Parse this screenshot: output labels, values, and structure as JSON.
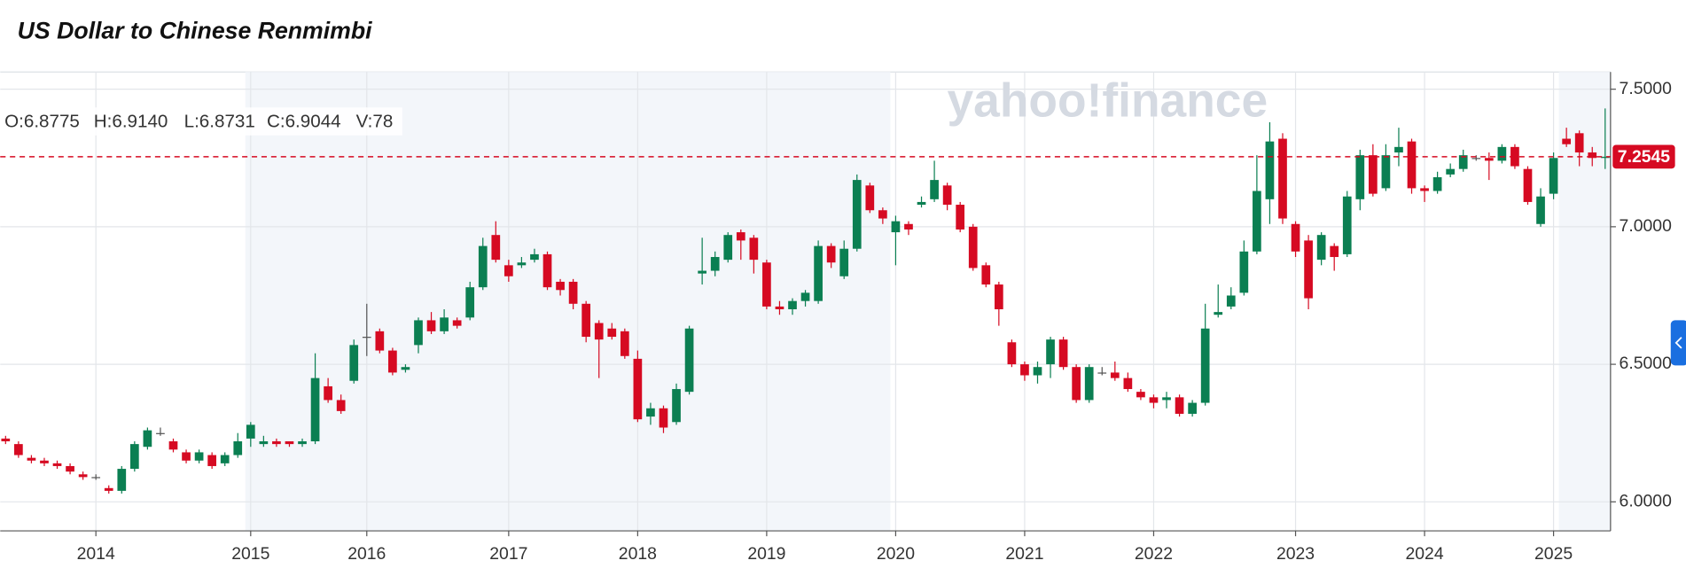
{
  "chart_data": {
    "type": "candlestick",
    "title": "US Dollar to Chinese Renmimbi",
    "watermark": "yahoo!finance",
    "readout": [
      "O:6.8775",
      "H:6.9140",
      "L:6.8731",
      "C:6.9044",
      "V:78"
    ],
    "last_price": 7.2545,
    "up_color": "#0b7f52",
    "down_color": "#d60a22",
    "last_color": "#d60a22",
    "ylim": [
      5.8945,
      7.5625
    ],
    "yticks": [
      {
        "value": 6.0,
        "label": "6.0000"
      },
      {
        "value": 6.5,
        "label": "6.5000"
      },
      {
        "value": 7.0,
        "label": "7.0000"
      },
      {
        "value": 7.5,
        "label": "7.5000"
      }
    ],
    "grid": true,
    "categories": [
      null,
      null,
      null,
      null,
      null,
      null,
      null,
      "2014",
      null,
      null,
      null,
      null,
      null,
      null,
      null,
      null,
      null,
      null,
      null,
      "2015",
      null,
      null,
      null,
      null,
      null,
      null,
      null,
      null,
      "2016",
      null,
      null,
      null,
      null,
      null,
      null,
      null,
      null,
      null,
      null,
      "2017",
      null,
      null,
      null,
      null,
      null,
      null,
      null,
      null,
      null,
      "2018",
      null,
      null,
      null,
      null,
      null,
      null,
      null,
      null,
      null,
      "2019",
      null,
      null,
      null,
      null,
      null,
      null,
      null,
      null,
      null,
      "2020",
      null,
      null,
      null,
      null,
      null,
      null,
      null,
      null,
      null,
      "2021",
      null,
      null,
      null,
      null,
      null,
      null,
      null,
      null,
      null,
      "2022",
      null,
      null,
      null,
      null,
      null,
      null,
      null,
      null,
      null,
      null,
      "2023",
      null,
      null,
      null,
      null,
      null,
      null,
      null,
      null,
      null,
      "2024",
      null,
      null,
      null,
      null,
      null,
      null,
      null,
      null,
      null,
      "2025",
      null,
      null,
      null,
      null
    ],
    "open": [
      6.23,
      6.21,
      6.16,
      6.15,
      6.14,
      6.13,
      6.1,
      6.09,
      6.05,
      6.04,
      6.12,
      6.2,
      6.25,
      6.22,
      6.18,
      6.15,
      6.17,
      6.14,
      6.17,
      6.23,
      6.21,
      6.22,
      6.22,
      6.21,
      6.22,
      6.42,
      6.37,
      6.44,
      6.6,
      6.62,
      6.55,
      6.48,
      6.57,
      6.66,
      6.62,
      6.66,
      6.67,
      6.78,
      6.97,
      6.86,
      6.86,
      6.88,
      6.9,
      6.8,
      6.8,
      6.72,
      6.65,
      6.63,
      6.62,
      6.52,
      6.31,
      6.34,
      6.29,
      6.4,
      6.83,
      6.84,
      6.88,
      6.98,
      6.96,
      6.87,
      6.71,
      6.7,
      6.73,
      6.73,
      6.93,
      6.82,
      6.92,
      7.15,
      7.06,
      6.98,
      7.01,
      7.08,
      7.1,
      7.15,
      7.08,
      7.0,
      6.86,
      6.79,
      6.58,
      6.5,
      6.46,
      6.5,
      6.59,
      6.49,
      6.37,
      6.47,
      6.47,
      6.45,
      6.4,
      6.38,
      6.37,
      6.38,
      6.32,
      6.36,
      6.68,
      6.71,
      6.76,
      6.91,
      7.1,
      7.32,
      7.01,
      6.95,
      6.88,
      6.93,
      6.9,
      7.1,
      7.26,
      7.14,
      7.27,
      7.31,
      7.14,
      7.13,
      7.19,
      7.21,
      7.25,
      7.25,
      7.24,
      7.29,
      7.21,
      7.01,
      7.12,
      7.32,
      7.34,
      7.27,
      7.25
    ],
    "high": [
      6.24,
      6.22,
      6.17,
      6.16,
      6.15,
      6.14,
      6.11,
      6.1,
      6.06,
      6.13,
      6.22,
      6.27,
      6.27,
      6.23,
      6.19,
      6.19,
      6.18,
      6.18,
      6.25,
      6.29,
      6.24,
      6.23,
      6.22,
      6.23,
      6.54,
      6.45,
      6.39,
      6.59,
      6.72,
      6.63,
      6.56,
      6.5,
      6.67,
      6.69,
      6.7,
      6.67,
      6.8,
      6.96,
      7.02,
      6.88,
      6.89,
      6.92,
      6.91,
      6.81,
      6.81,
      6.73,
      6.66,
      6.65,
      6.63,
      6.55,
      6.36,
      6.35,
      6.43,
      6.64,
      6.96,
      6.91,
      6.98,
      6.99,
      6.97,
      6.88,
      6.73,
      6.74,
      6.77,
      6.95,
      6.94,
      6.95,
      7.19,
      7.16,
      7.07,
      7.04,
      7.02,
      7.11,
      7.24,
      7.16,
      7.09,
      7.01,
      6.87,
      6.8,
      6.59,
      6.51,
      6.51,
      6.6,
      6.6,
      6.5,
      6.5,
      6.49,
      6.51,
      6.47,
      6.41,
      6.39,
      6.4,
      6.39,
      6.37,
      6.72,
      6.79,
      6.78,
      6.95,
      7.26,
      7.38,
      7.34,
      7.02,
      6.97,
      6.98,
      6.94,
      7.13,
      7.28,
      7.3,
      7.3,
      7.36,
      7.32,
      7.15,
      7.2,
      7.23,
      7.28,
      7.26,
      7.27,
      7.3,
      7.3,
      7.22,
      7.14,
      7.27,
      7.36,
      7.35,
      7.29,
      7.43
    ],
    "low": [
      6.21,
      6.16,
      6.14,
      6.13,
      6.12,
      6.1,
      6.08,
      6.08,
      6.03,
      6.03,
      6.11,
      6.19,
      6.24,
      6.18,
      6.14,
      6.14,
      6.12,
      6.13,
      6.16,
      6.2,
      6.2,
      6.2,
      6.2,
      6.2,
      6.21,
      6.36,
      6.32,
      6.43,
      6.53,
      6.54,
      6.46,
      6.47,
      6.54,
      6.61,
      6.61,
      6.63,
      6.66,
      6.77,
      6.87,
      6.8,
      6.85,
      6.87,
      6.77,
      6.75,
      6.7,
      6.58,
      6.45,
      6.59,
      6.52,
      6.29,
      6.28,
      6.25,
      6.28,
      6.39,
      6.79,
      6.82,
      6.87,
      6.88,
      6.83,
      6.7,
      6.68,
      6.68,
      6.71,
      6.72,
      6.85,
      6.81,
      6.91,
      7.05,
      7.01,
      6.86,
      6.97,
      7.07,
      7.09,
      7.06,
      6.98,
      6.84,
      6.78,
      6.64,
      6.49,
      6.44,
      6.43,
      6.45,
      6.48,
      6.36,
      6.36,
      6.46,
      6.44,
      6.4,
      6.37,
      6.34,
      6.34,
      6.31,
      6.31,
      6.35,
      6.67,
      6.7,
      6.75,
      6.9,
      7.01,
      7.01,
      6.89,
      6.7,
      6.86,
      6.84,
      6.89,
      7.06,
      7.11,
      7.13,
      7.22,
      7.12,
      7.09,
      7.12,
      7.18,
      7.2,
      7.24,
      7.17,
      7.23,
      7.21,
      7.08,
      7.0,
      7.1,
      7.29,
      7.22,
      7.22,
      7.21
    ],
    "close": [
      6.22,
      6.17,
      6.15,
      6.14,
      6.13,
      6.11,
      6.09,
      6.09,
      6.04,
      6.12,
      6.21,
      6.26,
      6.25,
      6.19,
      6.15,
      6.18,
      6.13,
      6.17,
      6.22,
      6.28,
      6.22,
      6.21,
      6.21,
      6.22,
      6.45,
      6.37,
      6.33,
      6.57,
      6.6,
      6.55,
      6.47,
      6.49,
      6.66,
      6.62,
      6.67,
      6.64,
      6.78,
      6.93,
      6.88,
      6.82,
      6.87,
      6.9,
      6.78,
      6.77,
      6.72,
      6.6,
      6.59,
      6.6,
      6.53,
      6.3,
      6.34,
      6.27,
      6.41,
      6.63,
      6.84,
      6.89,
      6.97,
      6.95,
      6.88,
      6.71,
      6.7,
      6.73,
      6.76,
      6.93,
      6.87,
      6.92,
      7.17,
      7.06,
      7.03,
      7.02,
      6.99,
      7.09,
      7.17,
      7.08,
      6.99,
      6.85,
      6.79,
      6.7,
      6.5,
      6.46,
      6.49,
      6.59,
      6.49,
      6.37,
      6.49,
      6.47,
      6.45,
      6.41,
      6.38,
      6.36,
      6.38,
      6.32,
      6.36,
      6.63,
      6.69,
      6.75,
      6.91,
      7.13,
      7.31,
      7.03,
      6.91,
      6.74,
      6.97,
      6.89,
      7.11,
      7.26,
      7.12,
      7.26,
      7.29,
      7.14,
      7.13,
      7.18,
      7.21,
      7.26,
      7.25,
      7.24,
      7.29,
      7.22,
      7.09,
      7.11,
      7.25,
      7.3,
      7.27,
      7.25,
      7.2545
    ]
  }
}
